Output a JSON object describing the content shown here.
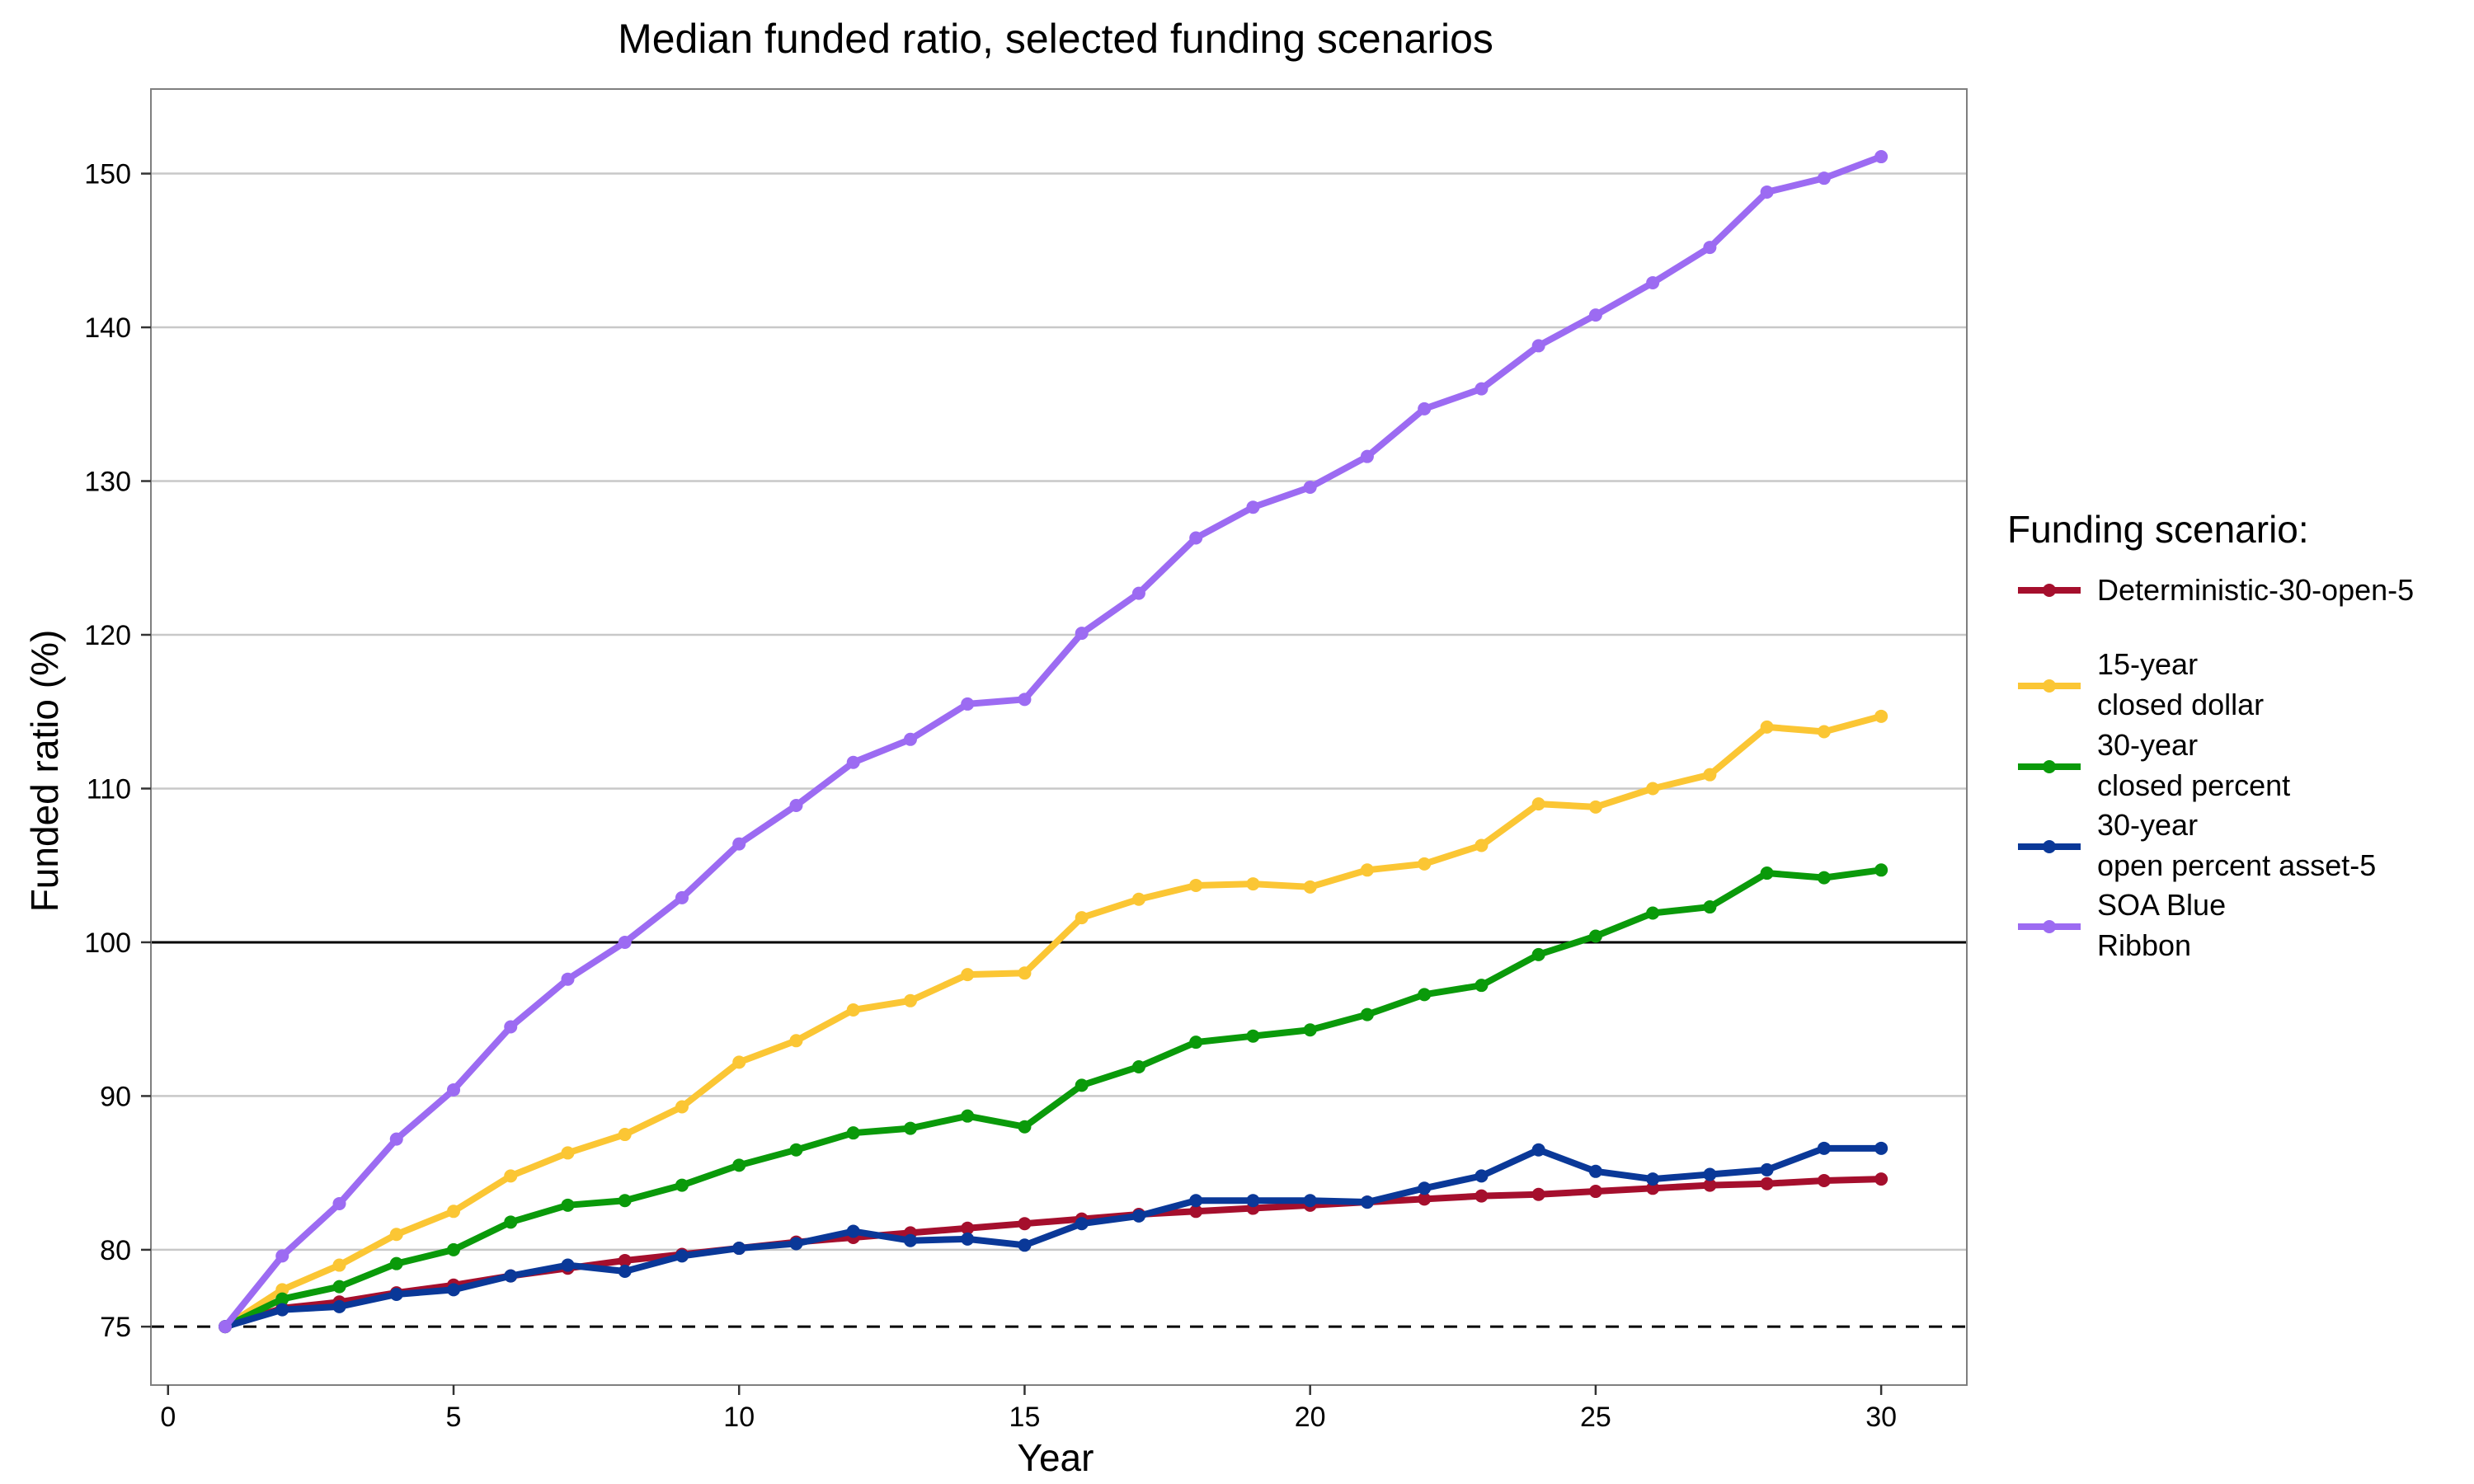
{
  "chart_data": {
    "type": "line",
    "title": "Median funded ratio, selected funding scenarios",
    "xlabel": "Year",
    "ylabel": "Funded ratio (%)",
    "xlim": [
      -0.3,
      31.5
    ],
    "ylim": [
      71.2,
      155.5
    ],
    "x_ticks": [
      0,
      5,
      10,
      15,
      20,
      25,
      30
    ],
    "y_ticks": [
      75,
      80,
      90,
      100,
      110,
      120,
      130,
      140,
      150
    ],
    "grid_y": [
      80,
      90,
      110,
      120,
      130,
      140,
      150
    ],
    "reference_lines": [
      {
        "value": 100,
        "style": "solid",
        "color": "#000000"
      },
      {
        "value": 75,
        "style": "dashed",
        "color": "#000000"
      }
    ],
    "legend": {
      "title": "Funding scenario:",
      "position": "right"
    },
    "x": [
      1,
      2,
      3,
      4,
      5,
      6,
      7,
      8,
      9,
      10,
      11,
      12,
      13,
      14,
      15,
      16,
      17,
      18,
      19,
      20,
      21,
      22,
      23,
      24,
      25,
      26,
      27,
      28,
      29,
      30
    ],
    "series": [
      {
        "name": "Deterministic-30-open-5",
        "label_lines": [
          "Deterministic-30-open-5"
        ],
        "color": "#A50F2D",
        "values": [
          75.0,
          76.2,
          76.6,
          77.2,
          77.7,
          78.3,
          78.8,
          79.3,
          79.7,
          80.1,
          80.5,
          80.8,
          81.1,
          81.4,
          81.7,
          82.0,
          82.3,
          82.5,
          82.7,
          82.9,
          83.1,
          83.3,
          83.5,
          83.6,
          83.8,
          84.0,
          84.2,
          84.3,
          84.5,
          84.6
        ]
      },
      {
        "name": "15-year closed dollar",
        "label_lines": [
          "15-year",
          "closed dollar"
        ],
        "color": "#FBC634",
        "values": [
          75.0,
          77.4,
          79.0,
          81.0,
          82.5,
          84.8,
          86.3,
          87.5,
          89.3,
          92.2,
          93.6,
          95.6,
          96.2,
          97.9,
          98.0,
          101.6,
          102.8,
          103.7,
          103.8,
          103.6,
          104.7,
          105.1,
          106.3,
          109.0,
          108.8,
          110.0,
          110.9,
          114.0,
          113.7,
          114.7
        ]
      },
      {
        "name": "30-year closed percent",
        "label_lines": [
          "30-year",
          "closed percent"
        ],
        "color": "#0A9A0A",
        "values": [
          75.0,
          76.8,
          77.6,
          79.1,
          80.0,
          81.8,
          82.9,
          83.2,
          84.2,
          85.5,
          86.5,
          87.6,
          87.9,
          88.7,
          88.0,
          90.7,
          91.9,
          93.5,
          93.9,
          94.3,
          95.3,
          96.6,
          97.2,
          99.2,
          100.4,
          101.9,
          102.3,
          104.5,
          104.2,
          104.7
        ]
      },
      {
        "name": "30-year open percent asset-5",
        "label_lines": [
          "30-year",
          "open percent asset-5"
        ],
        "color": "#0A3898",
        "values": [
          75.0,
          76.1,
          76.3,
          77.1,
          77.4,
          78.3,
          79.0,
          78.6,
          79.6,
          80.1,
          80.4,
          81.2,
          80.6,
          80.7,
          80.3,
          81.7,
          82.2,
          83.2,
          83.2,
          83.2,
          83.1,
          84.0,
          84.8,
          86.5,
          85.1,
          84.6,
          84.9,
          85.2,
          86.6,
          86.6
        ]
      },
      {
        "name": "SOA Blue Ribbon",
        "label_lines": [
          "SOA Blue",
          "Ribbon"
        ],
        "color": "#9C6BF2",
        "values": [
          75.0,
          79.6,
          83.0,
          87.2,
          90.4,
          94.5,
          97.6,
          100.0,
          102.9,
          106.4,
          108.9,
          111.7,
          113.2,
          115.5,
          115.8,
          120.1,
          122.7,
          126.3,
          128.3,
          129.6,
          131.6,
          134.7,
          136.0,
          138.8,
          140.8,
          142.9,
          145.2,
          148.8,
          149.7,
          151.1
        ]
      }
    ]
  }
}
